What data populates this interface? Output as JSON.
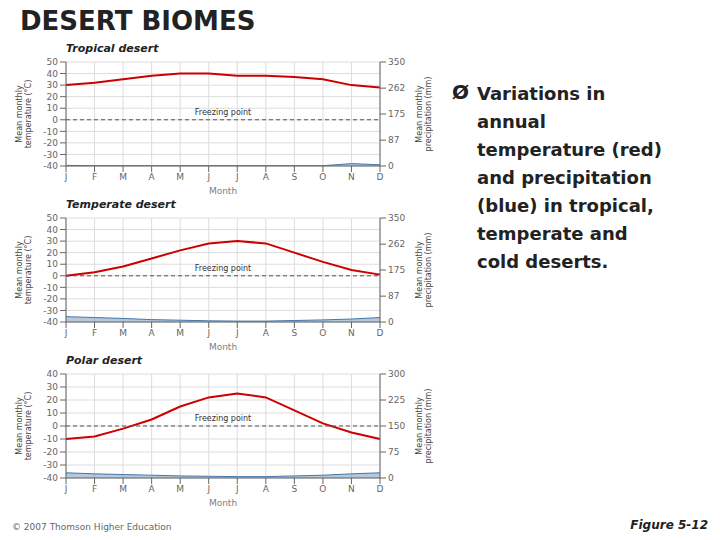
{
  "title": "DESERT BIOMES",
  "annotations": [
    "Ø",
    "Variations in",
    "annual",
    "temperature (red)",
    "and precipitation",
    "(blue) in tropical,",
    "temperate and",
    "cold deserts.",
    "Figure 5-12",
    "© 2007 Thomson Higher Education"
  ],
  "chart_data": [
    {
      "type": "line",
      "title": "Tropical desert",
      "categories": [
        "J",
        "F",
        "M",
        "A",
        "M",
        "J",
        "J",
        "A",
        "S",
        "O",
        "N",
        "D"
      ],
      "x_label": "Month",
      "y_label": "Mean monthly\ntemperature (°C)",
      "y2_label": "Mean monthly\nprecipitation (mm)",
      "series": [
        {
          "type": "line",
          "color": "#cc0000",
          "values": [
            30,
            32,
            35,
            38,
            40,
            40,
            38,
            38,
            37,
            35,
            30,
            28
          ]
        },
        {
          "type": "area",
          "axis": "y2",
          "color": "#4477aa",
          "values": [
            2,
            1,
            1,
            1,
            1,
            1,
            1,
            1,
            1,
            1,
            8,
            4
          ]
        }
      ],
      "ylim": [
        -40,
        50
      ],
      "yticks": [
        -40,
        -30,
        -20,
        -10,
        0,
        10,
        20,
        30,
        40,
        50
      ],
      "y2lim": [
        0,
        350
      ],
      "y2ticks": [
        0,
        87,
        175,
        262,
        350
      ],
      "grid": true,
      "hlines": [
        0
      ],
      "annotations": [
        "Freezing point"
      ]
    },
    {
      "type": "line",
      "title": "Temperate desert",
      "categories": [
        "J",
        "F",
        "M",
        "A",
        "M",
        "J",
        "J",
        "A",
        "S",
        "O",
        "N",
        "D"
      ],
      "x_label": "Month",
      "y_label": "Mean monthly\ntemperature (°C)",
      "y2_label": "Mean monthly\nprecipitation (mm)",
      "series": [
        {
          "type": "line",
          "color": "#cc0000",
          "values": [
            0,
            3,
            8,
            15,
            22,
            28,
            30,
            28,
            20,
            12,
            5,
            1
          ]
        },
        {
          "type": "area",
          "axis": "y2",
          "color": "#4477aa",
          "values": [
            18,
            15,
            12,
            8,
            6,
            4,
            3,
            3,
            5,
            7,
            10,
            15
          ]
        }
      ],
      "ylim": [
        -40,
        50
      ],
      "yticks": [
        -40,
        -30,
        -20,
        -10,
        0,
        10,
        20,
        30,
        40,
        50
      ],
      "y2lim": [
        0,
        350
      ],
      "y2ticks": [
        0,
        87,
        175,
        262,
        350
      ],
      "grid": true,
      "hlines": [
        0
      ],
      "annotations": [
        "Freezing point"
      ]
    },
    {
      "type": "line",
      "title": "Polar desert",
      "categories": [
        "J",
        "F",
        "M",
        "A",
        "M",
        "J",
        "J",
        "A",
        "S",
        "O",
        "N",
        "D"
      ],
      "x_label": "Month",
      "y_label": "Mean monthly\ntemperature (°C)",
      "y2_label": "Mean monthly\nprecipitation (mm)",
      "series": [
        {
          "type": "line",
          "color": "#cc0000",
          "values": [
            -10,
            -8,
            -2,
            5,
            15,
            22,
            25,
            22,
            12,
            2,
            -5,
            -10
          ]
        },
        {
          "type": "area",
          "axis": "y2",
          "color": "#4477aa",
          "values": [
            15,
            12,
            10,
            8,
            6,
            5,
            4,
            4,
            6,
            8,
            12,
            15
          ]
        }
      ],
      "ylim": [
        -40,
        40
      ],
      "yticks": [
        -40,
        -30,
        -20,
        -10,
        0,
        10,
        20,
        30,
        40
      ],
      "y2lim": [
        0,
        300
      ],
      "y2ticks": [
        0,
        75,
        150,
        225,
        300
      ],
      "grid": true,
      "hlines": [
        0
      ],
      "annotations": [
        "Freezing point"
      ]
    }
  ]
}
